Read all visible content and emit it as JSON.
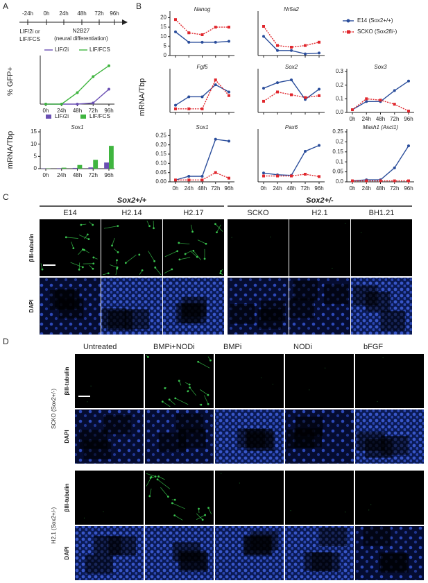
{
  "panel_labels": [
    "A",
    "B",
    "C",
    "D"
  ],
  "timeline": {
    "ticks": [
      "-24h",
      "0h",
      "24h",
      "48h",
      "72h",
      "96h"
    ],
    "pre": [
      "LIF/2i or",
      "LIF/FCS"
    ],
    "post": [
      "N2B27",
      "(neural differentiation)"
    ]
  },
  "chart_data": [
    {
      "type": "line",
      "ylabel": "% GFP+",
      "categories": [
        "0h",
        "24h",
        "48h",
        "72h",
        "96h"
      ],
      "ylim": [
        0,
        80
      ],
      "series": [
        {
          "name": "LIF/2i",
          "color": "#6a4fb3",
          "values": [
            0,
            0,
            0,
            2,
            26
          ]
        },
        {
          "name": "LIF/FCS",
          "color": "#3fb53f",
          "values": [
            0,
            0,
            20,
            48,
            67
          ]
        }
      ]
    },
    {
      "type": "bar",
      "title": "Sox1",
      "ylabel": "mRNA/Tbp",
      "categories": [
        "0h",
        "24h",
        "48h",
        "72h",
        "96h"
      ],
      "ylim": [
        0,
        15
      ],
      "yticks": [
        0,
        5,
        10,
        15
      ],
      "series": [
        {
          "name": "LIF/2i",
          "color": "#6a4fb3",
          "values": [
            0.1,
            0.2,
            0.3,
            0.5,
            2.5
          ]
        },
        {
          "name": "LIF/FCS",
          "color": "#3fb53f",
          "values": [
            0.1,
            0.4,
            1.5,
            3.6,
            9.3
          ]
        }
      ]
    },
    {
      "type": "line",
      "title": "Nanog",
      "ylabel": "mRNA/Tbp",
      "categories": [
        "0h",
        "24h",
        "48h",
        "72h",
        "96h"
      ],
      "ylim": [
        0,
        22
      ],
      "yticks": [
        0,
        5,
        10,
        15,
        20
      ],
      "series": [
        {
          "name": "E14 (Sox2+/+)",
          "color": "#2a4d9b",
          "values": [
            12.5,
            7,
            7,
            7,
            7.5
          ]
        },
        {
          "name": "SCKO (Sox2fl/-)",
          "color": "#e0262c",
          "values": [
            19,
            12,
            11,
            15,
            15
          ]
        }
      ]
    },
    {
      "type": "line",
      "title": "Nr5a2",
      "categories": [
        "0h",
        "24h",
        "48h",
        "72h",
        "96h"
      ],
      "ylim": [
        0,
        2.5
      ],
      "series": [
        {
          "color": "#2a4d9b",
          "values": [
            1.15,
            0.3,
            0.3,
            0.1,
            0.15
          ]
        },
        {
          "color": "#e0262c",
          "values": [
            1.75,
            0.6,
            0.5,
            0.6,
            0.8
          ]
        }
      ]
    },
    {
      "type": "line",
      "title": "Fgf5",
      "categories": [
        "0h",
        "24h",
        "48h",
        "72h",
        "96h"
      ],
      "ylim": [
        0.08,
        0.42
      ],
      "series": [
        {
          "color": "#2a4d9b",
          "values": [
            0.14,
            0.21,
            0.21,
            0.31,
            0.25
          ]
        },
        {
          "color": "#e0262c",
          "values": [
            0.11,
            0.11,
            0.11,
            0.35,
            0.22
          ]
        }
      ]
    },
    {
      "type": "line",
      "title": "Sox2",
      "categories": [
        "0h",
        "24h",
        "48h",
        "72h",
        "96h"
      ],
      "ylim": [
        0,
        2.2
      ],
      "series": [
        {
          "color": "#2a4d9b",
          "values": [
            1.3,
            1.6,
            1.75,
            0.7,
            1.25
          ]
        },
        {
          "color": "#e0262c",
          "values": [
            0.6,
            1.1,
            0.95,
            0.8,
            0.9
          ]
        }
      ]
    },
    {
      "type": "line",
      "title": "Sox3",
      "categories": [
        "0h",
        "24h",
        "48h",
        "72h",
        "96h"
      ],
      "ylim": [
        0,
        0.3
      ],
      "yticks": [
        {
          "value": 0,
          "label": "0.0"
        },
        0.1,
        0.2,
        0.3
      ],
      "series": [
        {
          "color": "#2a4d9b",
          "values": [
            0.02,
            0.08,
            0.08,
            0.16,
            0.23
          ]
        },
        {
          "color": "#e0262c",
          "values": [
            0.02,
            0.1,
            0.09,
            0.06,
            0.01
          ]
        }
      ]
    },
    {
      "type": "line",
      "title": "Sox1",
      "categories": [
        "0h",
        "24h",
        "48h",
        "72h",
        "96h"
      ],
      "ylim": [
        0,
        0.27
      ],
      "yticks": [
        {
          "value": 0,
          "label": "0.00"
        },
        0.05,
        {
          "value": 0.1,
          "label": "0.10"
        },
        0.15,
        {
          "value": 0.2,
          "label": "0.20"
        },
        0.25
      ],
      "series": [
        {
          "color": "#2a4d9b",
          "values": [
            0.01,
            0.03,
            0.03,
            0.23,
            0.22
          ]
        },
        {
          "color": "#e0262c",
          "values": [
            0.01,
            0.01,
            0.01,
            0.05,
            0.02
          ]
        }
      ]
    },
    {
      "type": "line",
      "title": "Pax6",
      "categories": [
        "0h",
        "24h",
        "48h",
        "72h",
        "96h"
      ],
      "ylim": [
        0,
        0.85
      ],
      "series": [
        {
          "color": "#2a4d9b",
          "values": [
            0.15,
            0.12,
            0.11,
            0.52,
            0.62
          ]
        },
        {
          "color": "#e0262c",
          "values": [
            0.1,
            0.1,
            0.1,
            0.13,
            0.09
          ]
        }
      ]
    },
    {
      "type": "line",
      "title": "Mash1 (Ascl1)",
      "categories": [
        "0h",
        "24h",
        "48h",
        "72h",
        "96h"
      ],
      "ylim": [
        0,
        0.25
      ],
      "yticks": [
        {
          "value": 0,
          "label": "0.0"
        },
        0.05,
        0.1,
        0.15,
        0.2,
        0.25
      ],
      "series": [
        {
          "color": "#2a4d9b",
          "values": [
            0.005,
            0.01,
            0.01,
            0.07,
            0.18
          ]
        },
        {
          "color": "#e0262c",
          "values": [
            0.005,
            0.005,
            0.005,
            0.005,
            0.005
          ]
        }
      ]
    }
  ],
  "panel_c": {
    "groups": [
      {
        "label": "Sox2+/+",
        "columns": [
          "E14",
          "H2.14",
          "H2.17"
        ]
      },
      {
        "label": "Sox2+/-",
        "columns": [
          "SCKO",
          "H2.1",
          "BH1.21"
        ]
      }
    ],
    "rows": [
      "βIII-tubulin",
      "DAPI"
    ]
  },
  "panel_d": {
    "columns": [
      "Untreated",
      "BMPi+NODi",
      "BMPi",
      "NODi",
      "bFGF"
    ],
    "groups": [
      {
        "label": "SCKO (Sox2+/-)",
        "rows": [
          "βIII-tubulin",
          "DAPI"
        ]
      },
      {
        "label": "H2.1 (Sox2+/-)",
        "rows": [
          "βIII-tubulin",
          "DAPI"
        ]
      }
    ]
  }
}
